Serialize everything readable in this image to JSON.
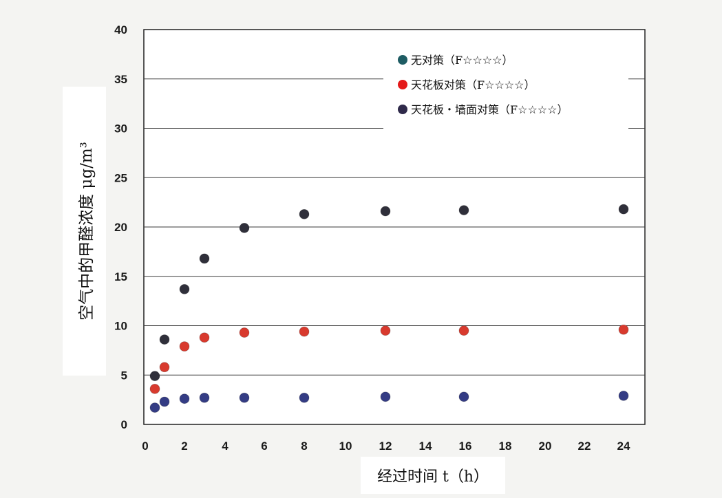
{
  "chart_data": {
    "type": "scatter",
    "xlabel": "经过时间 t（h）",
    "ylabel": "空气中的甲醛浓度 μg/m³",
    "x_ticks": [
      "0",
      "2",
      "4",
      "6",
      "8",
      "10",
      "12",
      "14",
      "16",
      "18",
      "20",
      "22",
      "24"
    ],
    "y_ticks": [
      "0",
      "5",
      "10",
      "15",
      "20",
      "25",
      "30",
      "35",
      "40"
    ],
    "ylim": [
      0,
      40
    ],
    "legend_position": "top-right",
    "grid": "horizontal",
    "series": [
      {
        "name": "无对策（F☆☆☆☆）",
        "color": "#2f2f3a",
        "x": [
          0.5,
          1,
          2,
          3,
          5,
          8,
          12,
          16,
          24
        ],
        "y": [
          4.9,
          8.6,
          13.7,
          16.8,
          19.9,
          21.3,
          21.6,
          21.7,
          21.8
        ]
      },
      {
        "name": "天花板对策（F☆☆☆☆）",
        "color": "#d83a2e",
        "x": [
          0.5,
          1,
          2,
          3,
          5,
          8,
          12,
          16,
          24
        ],
        "y": [
          3.6,
          5.8,
          7.9,
          8.8,
          9.3,
          9.4,
          9.5,
          9.5,
          9.6
        ]
      },
      {
        "name": "天花板・墙面对策（F☆☆☆☆）",
        "color": "#343c84",
        "x": [
          0.5,
          1,
          2,
          3,
          5,
          8,
          12,
          16,
          24
        ],
        "y": [
          1.7,
          2.3,
          2.6,
          2.7,
          2.7,
          2.7,
          2.8,
          2.8,
          2.9
        ]
      }
    ],
    "legend_marker_colors": [
      "#1e5c63",
      "#e41a1a",
      "#2f2a4a"
    ]
  }
}
